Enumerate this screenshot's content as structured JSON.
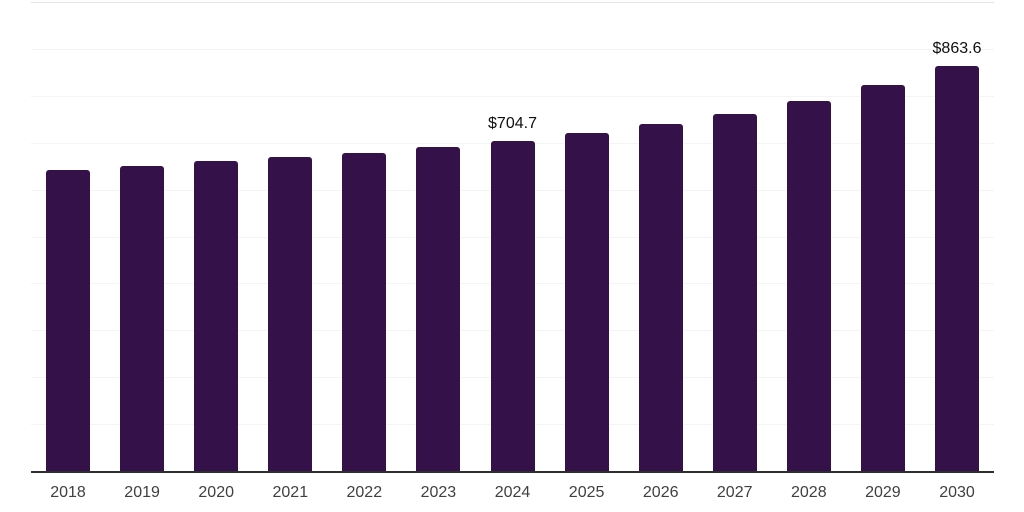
{
  "chart_data": {
    "type": "bar",
    "title": "",
    "xlabel": "",
    "ylabel": "",
    "categories": [
      "2018",
      "2019",
      "2020",
      "2021",
      "2022",
      "2023",
      "2024",
      "2025",
      "2026",
      "2027",
      "2028",
      "2029",
      "2030"
    ],
    "values": [
      641,
      651,
      662,
      670,
      679,
      692,
      704.7,
      721,
      741,
      761,
      789,
      824,
      863.6
    ],
    "labeled_points": [
      {
        "category": "2024",
        "label": "$704.7"
      },
      {
        "category": "2030",
        "label": "$863.6"
      }
    ],
    "ylim": [
      0,
      1000
    ],
    "gridline_interval": 100,
    "grid": "horizontal-only",
    "legend": "none",
    "y_axis_tick_labels": "none",
    "colors": {
      "bar": "#35114a",
      "axis_line": "#2e2e2e",
      "gridline": "#f4f4f4",
      "gridline_top": "#e4e4e4",
      "tick_label": "#404040",
      "data_label": "#0f0f0f",
      "background": "#ffffff"
    }
  }
}
